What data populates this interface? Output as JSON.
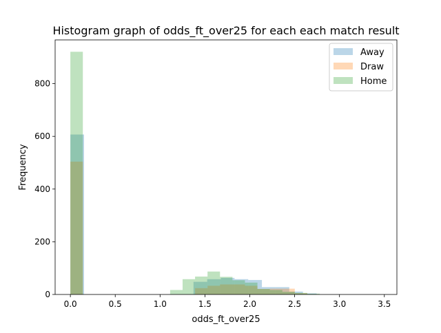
{
  "chart_data": {
    "type": "bar",
    "title": "Histogram graph of odds_ft_over25 for each each match result",
    "xlabel": "odds_ft_over25",
    "ylabel": "Frequency",
    "xlim": [
      -0.17,
      3.64
    ],
    "ylim": [
      0,
      966
    ],
    "xticks": [
      {
        "value": 0.0,
        "label": "0.0"
      },
      {
        "value": 0.5,
        "label": "0.5"
      },
      {
        "value": 1.0,
        "label": "1.0"
      },
      {
        "value": 1.5,
        "label": "1.5"
      },
      {
        "value": 2.0,
        "label": "2.0"
      },
      {
        "value": 2.5,
        "label": "2.5"
      },
      {
        "value": 3.0,
        "label": "3.0"
      },
      {
        "value": 3.5,
        "label": "3.5"
      }
    ],
    "yticks": [
      {
        "value": 0,
        "label": "0"
      },
      {
        "value": 200,
        "label": "200"
      },
      {
        "value": 400,
        "label": "400"
      },
      {
        "value": 600,
        "label": "600"
      },
      {
        "value": 800,
        "label": "800"
      }
    ],
    "legend_position": "top-right",
    "alpha": 0.3,
    "grid": false,
    "series": [
      {
        "name": "Away",
        "color": "#1f77b4",
        "bins": [
          {
            "x0": 0.0,
            "x1": 0.1525,
            "y": 607
          },
          {
            "x0": 1.3725,
            "x1": 1.525,
            "y": 48
          },
          {
            "x0": 1.525,
            "x1": 1.6775,
            "y": 58
          },
          {
            "x0": 1.6775,
            "x1": 1.83,
            "y": 63
          },
          {
            "x0": 1.83,
            "x1": 1.9825,
            "y": 58
          },
          {
            "x0": 1.9825,
            "x1": 2.135,
            "y": 55
          },
          {
            "x0": 2.135,
            "x1": 2.2875,
            "y": 28
          },
          {
            "x0": 2.2875,
            "x1": 2.44,
            "y": 28
          },
          {
            "x0": 2.44,
            "x1": 2.5925,
            "y": 11
          },
          {
            "x0": 2.5925,
            "x1": 2.745,
            "y": 4
          }
        ]
      },
      {
        "name": "Draw",
        "color": "#ff7f0e",
        "bins": [
          {
            "x0": 0.0,
            "x1": 0.139,
            "y": 504
          },
          {
            "x0": 1.39,
            "x1": 1.529,
            "y": 24
          },
          {
            "x0": 1.529,
            "x1": 1.668,
            "y": 33
          },
          {
            "x0": 1.668,
            "x1": 1.807,
            "y": 38
          },
          {
            "x0": 1.807,
            "x1": 1.946,
            "y": 38
          },
          {
            "x0": 1.946,
            "x1": 2.085,
            "y": 33
          },
          {
            "x0": 2.085,
            "x1": 2.224,
            "y": 21
          },
          {
            "x0": 2.224,
            "x1": 2.363,
            "y": 22
          },
          {
            "x0": 2.363,
            "x1": 2.502,
            "y": 22
          },
          {
            "x0": 2.502,
            "x1": 2.641,
            "y": 5
          }
        ]
      },
      {
        "name": "Home",
        "color": "#2ca02c",
        "bins": [
          {
            "x0": 0.0,
            "x1": 0.139,
            "y": 921
          },
          {
            "x0": 1.112,
            "x1": 1.251,
            "y": 17
          },
          {
            "x0": 1.251,
            "x1": 1.39,
            "y": 58
          },
          {
            "x0": 1.39,
            "x1": 1.529,
            "y": 68
          },
          {
            "x0": 1.529,
            "x1": 1.668,
            "y": 87
          },
          {
            "x0": 1.668,
            "x1": 1.807,
            "y": 67
          },
          {
            "x0": 1.807,
            "x1": 1.946,
            "y": 54
          },
          {
            "x0": 1.946,
            "x1": 2.085,
            "y": 45
          },
          {
            "x0": 2.085,
            "x1": 2.224,
            "y": 21
          },
          {
            "x0": 2.224,
            "x1": 2.363,
            "y": 17
          },
          {
            "x0": 2.363,
            "x1": 2.502,
            "y": 10
          },
          {
            "x0": 2.502,
            "x1": 2.641,
            "y": 6
          },
          {
            "x0": 2.641,
            "x1": 2.78,
            "y": 3
          }
        ]
      }
    ]
  }
}
